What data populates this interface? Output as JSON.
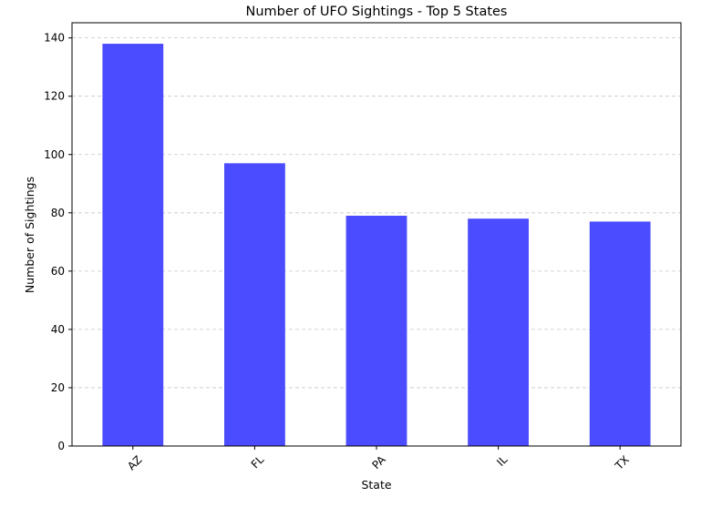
{
  "chart_data": {
    "type": "bar",
    "title": "Number of UFO Sightings - Top 5 States",
    "xlabel": "State",
    "ylabel": "Number of Sightings",
    "categories": [
      "AZ",
      "FL",
      "PA",
      "IL",
      "TX"
    ],
    "values": [
      138,
      97,
      79,
      78,
      77
    ],
    "ylim": [
      0,
      145.2
    ],
    "yticks": [
      0,
      20,
      40,
      60,
      80,
      100,
      120,
      140
    ],
    "grid": "y-dashed",
    "bar_color": "#4b4bff",
    "x_tick_rotation": 45
  }
}
